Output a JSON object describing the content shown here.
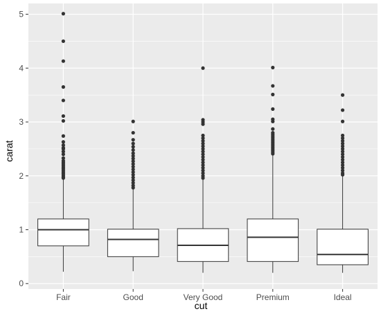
{
  "chart_data": {
    "type": "boxplot",
    "title": "",
    "xlabel": "cut",
    "ylabel": "carat",
    "categories": [
      "Fair",
      "Good",
      "Very Good",
      "Premium",
      "Ideal"
    ],
    "ylim": [
      -0.1,
      5.2
    ],
    "yticks": [
      0,
      1,
      2,
      3,
      4,
      5
    ],
    "grid": true,
    "legend": "none",
    "boxes": [
      {
        "name": "Fair",
        "min": 0.22,
        "q1": 0.7,
        "median": 1.0,
        "q3": 1.2,
        "max": 1.94,
        "outliers": [
          5.01,
          4.5,
          4.13,
          3.65,
          3.4,
          3.11,
          3.02,
          2.74,
          2.63,
          2.57,
          2.52,
          2.5,
          2.45,
          2.4,
          2.33,
          2.28,
          2.25,
          2.22,
          2.19,
          2.16,
          2.13,
          2.1,
          2.07,
          2.04,
          2.01,
          1.98,
          1.96
        ]
      },
      {
        "name": "Good",
        "min": 0.23,
        "q1": 0.5,
        "median": 0.82,
        "q3": 1.01,
        "max": 1.75,
        "outliers": [
          3.01,
          2.8,
          2.67,
          2.6,
          2.54,
          2.48,
          2.42,
          2.37,
          2.32,
          2.27,
          2.22,
          2.17,
          2.12,
          2.07,
          2.02,
          1.97,
          1.92,
          1.87,
          1.82,
          1.78
        ]
      },
      {
        "name": "Very Good",
        "min": 0.2,
        "q1": 0.41,
        "median": 0.71,
        "q3": 1.02,
        "max": 1.93,
        "outliers": [
          4.0,
          3.04,
          3.0,
          2.96,
          2.75,
          2.7,
          2.65,
          2.6,
          2.55,
          2.5,
          2.45,
          2.4,
          2.35,
          2.3,
          2.25,
          2.2,
          2.15,
          2.1,
          2.05,
          2.0,
          1.96
        ]
      },
      {
        "name": "Premium",
        "min": 0.2,
        "q1": 0.41,
        "median": 0.86,
        "q3": 1.2,
        "max": 2.38,
        "outliers": [
          4.01,
          3.67,
          3.51,
          3.24,
          3.05,
          3.01,
          2.87,
          2.8,
          2.77,
          2.74,
          2.71,
          2.68,
          2.65,
          2.62,
          2.59,
          2.56,
          2.53,
          2.5,
          2.47,
          2.44,
          2.41
        ]
      },
      {
        "name": "Ideal",
        "min": 0.2,
        "q1": 0.35,
        "median": 0.54,
        "q3": 1.01,
        "max": 2.0,
        "outliers": [
          3.5,
          3.22,
          3.01,
          2.75,
          2.7,
          2.65,
          2.6,
          2.55,
          2.5,
          2.45,
          2.4,
          2.35,
          2.3,
          2.25,
          2.2,
          2.15,
          2.1,
          2.05,
          2.02
        ]
      }
    ],
    "colors": {
      "panel_background": "#ebebeb",
      "grid_major": "#ffffff",
      "box_fill": "#ffffff",
      "box_stroke": "#333333",
      "outlier": "#333333"
    }
  }
}
